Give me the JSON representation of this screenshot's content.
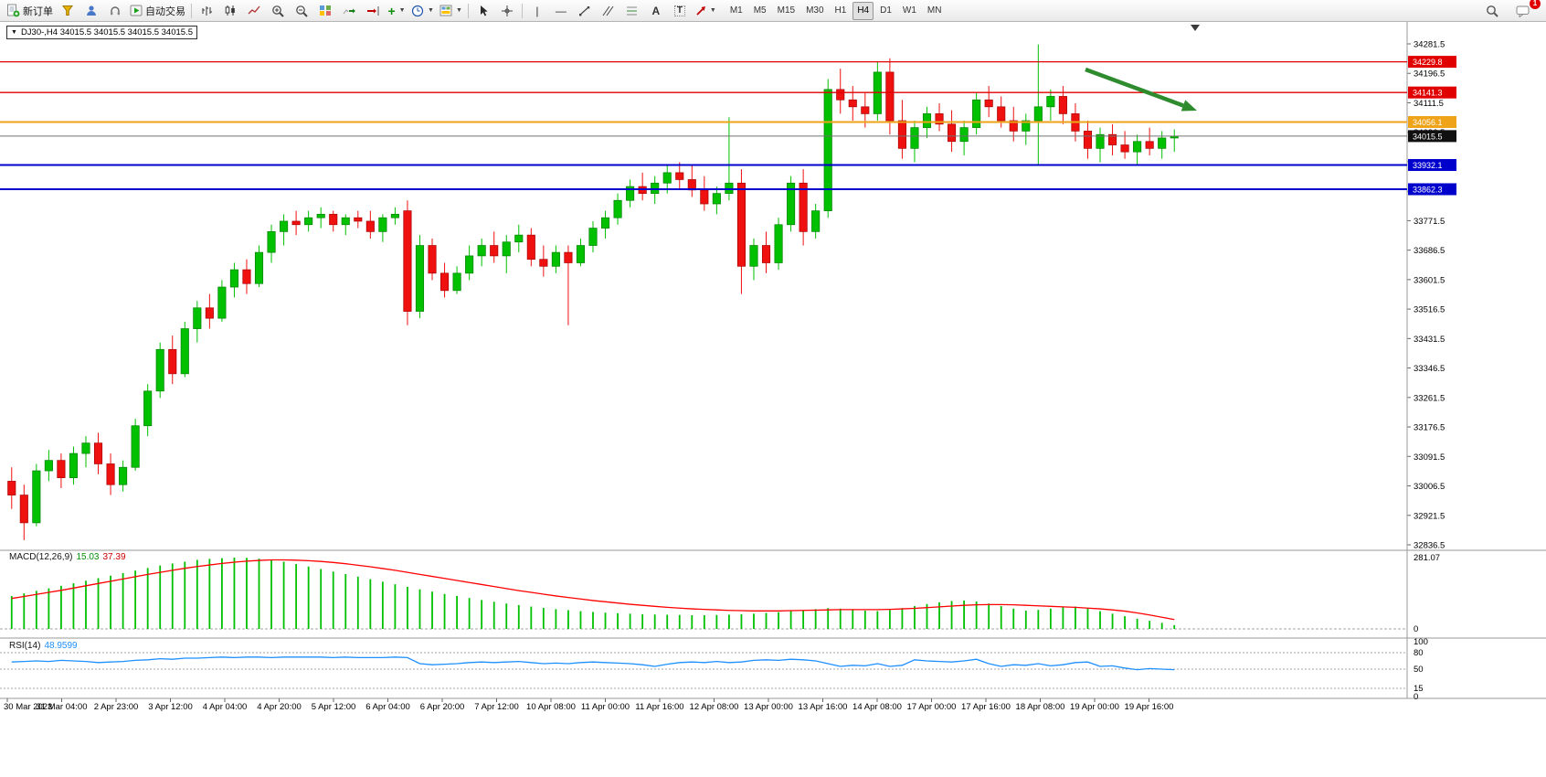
{
  "toolbar": {
    "new_order": "新订单",
    "autotrading": "自动交易",
    "timeframes": [
      "M1",
      "M5",
      "M15",
      "M30",
      "H1",
      "H4",
      "D1",
      "W1",
      "MN"
    ],
    "active_timeframe": "H4",
    "chat_badge": "1"
  },
  "chart": {
    "title": "DJ30-,H4 34015.5 34015.5 34015.5 34015.5"
  },
  "indicators": {
    "macd": {
      "label": "MACD(12,26,9)",
      "value_main": "15.03",
      "value_signal": "37.39",
      "axis_max": "281.07",
      "axis_min": "0"
    },
    "rsi": {
      "label": "RSI(14)",
      "value": "48.9599",
      "levels": [
        "100",
        "80",
        "50",
        "15",
        "0"
      ]
    }
  },
  "chart_data": {
    "type": "candlestick",
    "symbol": "DJ30-",
    "timeframe": "H4",
    "colors": {
      "up": "#00c000",
      "up_border": "#008000",
      "down": "#ef1010",
      "down_border": "#a80000",
      "macd_hist": "#00c000",
      "macd_signal": "#ff0000",
      "rsi_line": "#1e90ff"
    },
    "price_axis": {
      "top_value": 34281.5,
      "bottom_value": 32836.5,
      "step": 85,
      "ticks": [
        "34281.5",
        "34196.5",
        "34111.5",
        "34026.5",
        "33941.5",
        "33856.5",
        "33771.5",
        "33686.5",
        "33601.5",
        "33516.5",
        "33431.5",
        "33346.5",
        "33261.5",
        "33176.5",
        "33091.5",
        "33006.5",
        "32921.5",
        "32836.5"
      ]
    },
    "hlines": [
      {
        "label": "34229.8",
        "price": 34229.8,
        "color": "#e00000",
        "width": 1.3
      },
      {
        "label": "34141.3",
        "price": 34141.3,
        "color": "#e00000",
        "width": 1.3
      },
      {
        "label": "34056.1",
        "price": 34056.1,
        "color": "#efa318",
        "width": 2
      },
      {
        "label": "34015.5",
        "price": 34015.5,
        "color": "#707070",
        "width": 1,
        "tag_bg": "#101010",
        "current": true
      },
      {
        "label": "33932.1",
        "price": 33932.1,
        "color": "#0000cd",
        "width": 2
      },
      {
        "label": "33862.3",
        "price": 33862.3,
        "color": "#0000cd",
        "width": 2
      }
    ],
    "annotations": [
      {
        "type": "arrow",
        "from": [
          1188,
          76
        ],
        "to": [
          1310,
          121
        ],
        "color": "#2e8b2e"
      }
    ],
    "candles": [
      [
        33020,
        33060,
        32940,
        32980
      ],
      [
        32980,
        33010,
        32850,
        32900
      ],
      [
        32900,
        33070,
        32890,
        33050
      ],
      [
        33050,
        33110,
        33020,
        33080
      ],
      [
        33080,
        33100,
        33000,
        33030
      ],
      [
        33030,
        33120,
        33010,
        33100
      ],
      [
        33100,
        33150,
        33060,
        33130
      ],
      [
        33130,
        33160,
        33040,
        33070
      ],
      [
        33070,
        33100,
        32980,
        33010
      ],
      [
        33010,
        33080,
        32990,
        33060
      ],
      [
        33060,
        33200,
        33050,
        33180
      ],
      [
        33180,
        33300,
        33150,
        33280
      ],
      [
        33280,
        33420,
        33260,
        33400
      ],
      [
        33400,
        33440,
        33300,
        33330
      ],
      [
        33330,
        33480,
        33320,
        33460
      ],
      [
        33460,
        33540,
        33420,
        33520
      ],
      [
        33520,
        33560,
        33460,
        33490
      ],
      [
        33490,
        33600,
        33480,
        33580
      ],
      [
        33580,
        33650,
        33550,
        33630
      ],
      [
        33630,
        33660,
        33560,
        33590
      ],
      [
        33590,
        33700,
        33580,
        33680
      ],
      [
        33680,
        33760,
        33650,
        33740
      ],
      [
        33740,
        33790,
        33700,
        33770
      ],
      [
        33770,
        33800,
        33730,
        33760
      ],
      [
        33760,
        33800,
        33740,
        33780
      ],
      [
        33780,
        33810,
        33750,
        33790
      ],
      [
        33790,
        33800,
        33740,
        33760
      ],
      [
        33760,
        33790,
        33730,
        33780
      ],
      [
        33780,
        33800,
        33750,
        33770
      ],
      [
        33770,
        33800,
        33720,
        33740
      ],
      [
        33740,
        33790,
        33710,
        33780
      ],
      [
        33780,
        33810,
        33760,
        33790
      ],
      [
        33800,
        33830,
        33470,
        33510
      ],
      [
        33510,
        33730,
        33490,
        33700
      ],
      [
        33700,
        33720,
        33600,
        33620
      ],
      [
        33620,
        33650,
        33550,
        33570
      ],
      [
        33570,
        33640,
        33560,
        33620
      ],
      [
        33620,
        33700,
        33600,
        33670
      ],
      [
        33670,
        33720,
        33640,
        33700
      ],
      [
        33700,
        33740,
        33650,
        33670
      ],
      [
        33670,
        33730,
        33620,
        33710
      ],
      [
        33710,
        33760,
        33680,
        33730
      ],
      [
        33730,
        33750,
        33640,
        33660
      ],
      [
        33660,
        33700,
        33610,
        33640
      ],
      [
        33640,
        33700,
        33620,
        33680
      ],
      [
        33680,
        33700,
        33470,
        33650
      ],
      [
        33650,
        33720,
        33640,
        33700
      ],
      [
        33700,
        33770,
        33680,
        33750
      ],
      [
        33750,
        33800,
        33720,
        33780
      ],
      [
        33780,
        33850,
        33760,
        33830
      ],
      [
        33830,
        33890,
        33810,
        33870
      ],
      [
        33870,
        33910,
        33830,
        33850
      ],
      [
        33850,
        33900,
        33820,
        33880
      ],
      [
        33880,
        33930,
        33850,
        33910
      ],
      [
        33910,
        33940,
        33860,
        33890
      ],
      [
        33890,
        33930,
        33840,
        33860
      ],
      [
        33860,
        33900,
        33800,
        33820
      ],
      [
        33820,
        33870,
        33790,
        33850
      ],
      [
        33850,
        34070,
        33830,
        33880
      ],
      [
        33880,
        33920,
        33560,
        33640
      ],
      [
        33640,
        33720,
        33600,
        33700
      ],
      [
        33700,
        33740,
        33620,
        33650
      ],
      [
        33650,
        33780,
        33630,
        33760
      ],
      [
        33760,
        33900,
        33740,
        33880
      ],
      [
        33880,
        33920,
        33700,
        33740
      ],
      [
        33740,
        33820,
        33720,
        33800
      ],
      [
        33800,
        34180,
        33780,
        34150
      ],
      [
        34150,
        34210,
        34080,
        34120
      ],
      [
        34120,
        34160,
        34060,
        34100
      ],
      [
        34100,
        34140,
        34040,
        34080
      ],
      [
        34080,
        34230,
        34060,
        34200
      ],
      [
        34200,
        34240,
        34020,
        34060
      ],
      [
        34060,
        34120,
        33950,
        33980
      ],
      [
        33980,
        34060,
        33940,
        34040
      ],
      [
        34040,
        34100,
        34010,
        34080
      ],
      [
        34080,
        34110,
        34030,
        34050
      ],
      [
        34050,
        34090,
        33970,
        34000
      ],
      [
        34000,
        34060,
        33960,
        34040
      ],
      [
        34040,
        34140,
        34020,
        34120
      ],
      [
        34120,
        34160,
        34070,
        34100
      ],
      [
        34100,
        34130,
        34040,
        34060
      ],
      [
        34060,
        34100,
        34000,
        34030
      ],
      [
        34030,
        34080,
        33990,
        34060
      ],
      [
        34060,
        34280,
        33930,
        34100
      ],
      [
        34100,
        34150,
        34060,
        34130
      ],
      [
        34130,
        34160,
        34050,
        34080
      ],
      [
        34080,
        34110,
        34000,
        34030
      ],
      [
        34030,
        34060,
        33950,
        33980
      ],
      [
        33980,
        34040,
        33940,
        34020
      ],
      [
        34020,
        34050,
        33960,
        33990
      ],
      [
        33990,
        34030,
        33950,
        33970
      ],
      [
        33970,
        34020,
        33930,
        34000
      ],
      [
        34000,
        34040,
        33960,
        33980
      ],
      [
        33980,
        34030,
        33950,
        34010
      ],
      [
        34010,
        34035,
        33970,
        34015.5
      ]
    ],
    "macd": {
      "max": 281.07,
      "histogram": [
        130,
        140,
        150,
        160,
        170,
        180,
        190,
        200,
        210,
        220,
        230,
        240,
        250,
        258,
        265,
        272,
        276,
        279,
        281,
        280,
        277,
        272,
        265,
        256,
        246,
        236,
        226,
        216,
        206,
        196,
        186,
        176,
        166,
        156,
        147,
        138,
        130,
        122,
        114,
        107,
        100,
        94,
        88,
        83,
        78,
        74,
        70,
        67,
        64,
        62,
        60,
        58,
        57,
        56,
        55,
        54,
        54,
        55,
        56,
        58,
        60,
        63,
        66,
        70,
        74,
        78,
        82,
        80,
        76,
        72,
        70,
        75,
        82,
        90,
        98,
        105,
        110,
        112,
        108,
        100,
        90,
        80,
        72,
        75,
        80,
        85,
        88,
        80,
        70,
        60,
        50,
        40,
        32,
        24,
        15
      ],
      "signal": [
        120,
        128,
        136,
        144,
        152,
        161,
        170,
        179,
        188,
        197,
        206,
        215,
        223,
        231,
        239,
        246,
        252,
        258,
        263,
        267,
        270,
        272,
        272,
        271,
        269,
        266,
        262,
        257,
        251,
        245,
        238,
        231,
        223,
        215,
        207,
        199,
        191,
        183,
        175,
        167,
        159,
        151,
        144,
        137,
        130,
        124,
        118,
        112,
        107,
        102,
        97,
        93,
        89,
        85,
        82,
        79,
        77,
        75,
        73,
        72,
        71,
        71,
        71,
        72,
        73,
        74,
        75,
        76,
        76,
        76,
        76,
        77,
        79,
        81,
        84,
        87,
        90,
        93,
        95,
        96,
        96,
        95,
        93,
        91,
        89,
        87,
        85,
        82,
        79,
        75,
        70,
        63,
        55,
        46,
        37
      ]
    },
    "rsi": {
      "axis_values": [
        100,
        80,
        50,
        15,
        0
      ],
      "level_values": [
        80,
        50,
        15
      ],
      "values": [
        63,
        64,
        65,
        64,
        66,
        65,
        64,
        62,
        63,
        64,
        66,
        67,
        69,
        68,
        70,
        70,
        71,
        72,
        71,
        72,
        72,
        71,
        72,
        72,
        72,
        72,
        71,
        72,
        71,
        71,
        71,
        72,
        71,
        60,
        58,
        59,
        60,
        62,
        63,
        62,
        63,
        64,
        62,
        60,
        61,
        60,
        62,
        63,
        62,
        61,
        60,
        58,
        55,
        59,
        62,
        63,
        62,
        64,
        62,
        63,
        66,
        67,
        66,
        68,
        67,
        65,
        60,
        55,
        57,
        56,
        60,
        55,
        57,
        67,
        65,
        64,
        63,
        65,
        68,
        60,
        55,
        58,
        57,
        60,
        56,
        58,
        62,
        63,
        55,
        56,
        52,
        49,
        51,
        50,
        49
      ]
    },
    "time_axis": {
      "labels": [
        "30 Mar 2023",
        "31 Mar 04:00",
        "2 Apr 23:00",
        "3 Apr 12:00",
        "4 Apr 04:00",
        "4 Apr 20:00",
        "5 Apr 12:00",
        "6 Apr 04:00",
        "6 Apr 20:00",
        "7 Apr 12:00",
        "10 Apr 08:00",
        "11 Apr 00:00",
        "11 Apr 16:00",
        "12 Apr 08:00",
        "13 Apr 00:00",
        "13 Apr 16:00",
        "14 Apr 08:00",
        "17 Apr 00:00",
        "17 Apr 16:00",
        "18 Apr 08:00",
        "19 Apr 00:00",
        "19 Apr 16:00"
      ]
    }
  }
}
